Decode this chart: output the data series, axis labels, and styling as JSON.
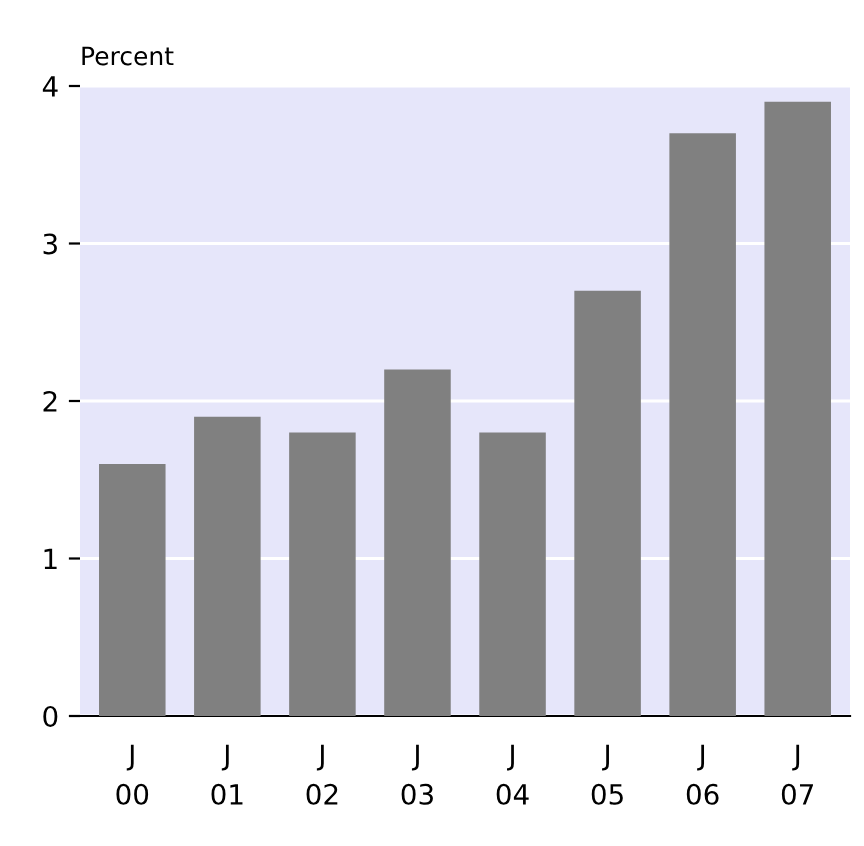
{
  "chart_data": {
    "type": "bar",
    "ylabel": "Percent",
    "categories": [
      "J\n00",
      "J\n01",
      "J\n02",
      "J\n03",
      "J\n04",
      "J\n05",
      "J\n06",
      "J\n07"
    ],
    "values": [
      1.6,
      1.9,
      1.8,
      2.2,
      1.8,
      2.7,
      3.7,
      3.9
    ],
    "color": "#808080",
    "ylim": [
      0,
      4
    ],
    "yticks": [
      0,
      1,
      2,
      3,
      4
    ],
    "grid": "y"
  }
}
